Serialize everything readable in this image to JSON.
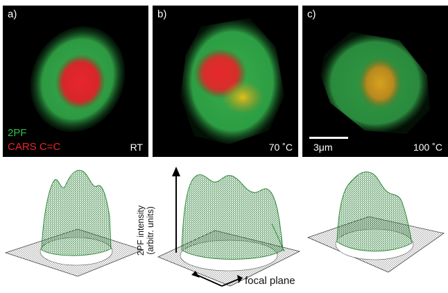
{
  "panels": [
    {
      "label": "a)",
      "condition": "RT"
    },
    {
      "label": "b)",
      "condition": "70 ˚C"
    },
    {
      "label": "c)",
      "condition": "100 ˚C"
    }
  ],
  "legend": {
    "channel_green": "2PF",
    "channel_red": "CARS C=C"
  },
  "scale_bar": {
    "label": "3μm"
  },
  "surface_plot": {
    "z_axis_label_line1": "2PF intensity",
    "z_axis_label_line2": "(arbitr. units)",
    "xy_label": "focal plane"
  },
  "colors": {
    "green": "#2fbf4a",
    "red": "#e8262d",
    "yellow": "#e0c21a",
    "mesh_gray": "#9a9a9a"
  }
}
